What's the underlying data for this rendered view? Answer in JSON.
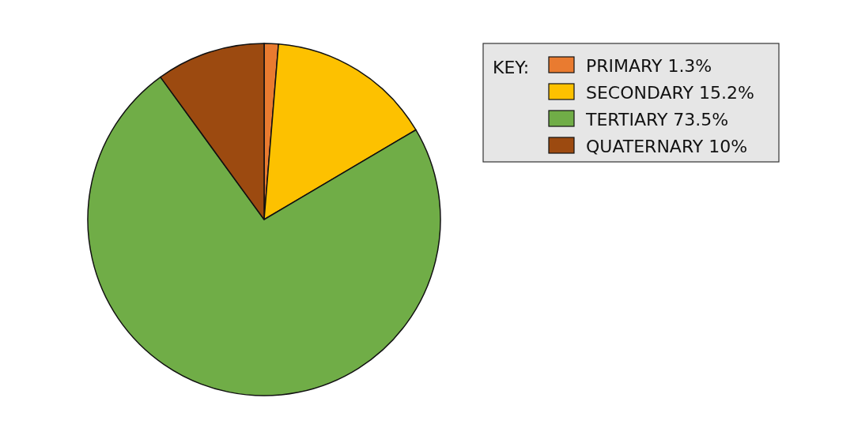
{
  "chart_data": {
    "type": "pie",
    "legend_title": "KEY:",
    "legend": "top right",
    "categories": [
      "PRIMARY 1.3%",
      "SECONDARY 15.2%",
      "TERTIARY 73.5%",
      "QUATERNARY 10%"
    ],
    "values": [
      1.3,
      15.2,
      73.5,
      10
    ],
    "colors": [
      "#e97b30",
      "#fdc100",
      "#70ad47",
      "#9c4a10"
    ]
  }
}
